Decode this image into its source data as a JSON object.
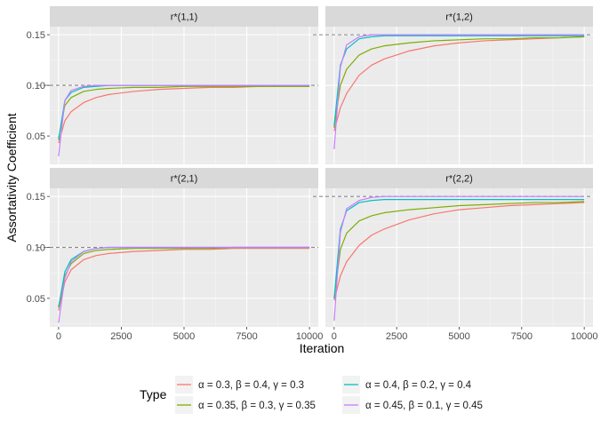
{
  "chart_data": {
    "type": "line",
    "xlabel": "Iteration",
    "ylabel": "Assortativity Coefficient",
    "xlim": [
      -350,
      10350
    ],
    "x_ticks": [
      0,
      2500,
      5000,
      7500,
      10000
    ],
    "x_tick_labels": [
      "0",
      "2500",
      "5000",
      "7500",
      "10000"
    ],
    "ylim": [
      0.022,
      0.158
    ],
    "y_ticks": [
      0.05,
      0.1,
      0.15
    ],
    "y_tick_labels": [
      "0.05",
      "0.10",
      "0.15"
    ],
    "grid": true,
    "legend_position": "bottom",
    "legend_title": "Type",
    "series": [
      {
        "name": "α = 0.3, β = 0.4, γ = 0.3",
        "color": "#F8766D"
      },
      {
        "name": "α = 0.35, β = 0.3, γ = 0.35",
        "color": "#7CAE00"
      },
      {
        "name": "α = 0.4, β = 0.2, γ = 0.4",
        "color": "#00BFC4"
      },
      {
        "name": "α = 0.45, β = 0.1, γ = 0.45",
        "color": "#C77CFF"
      }
    ],
    "panels": [
      {
        "title": "r*(1,1)",
        "reference_line": 0.1,
        "curves": [
          {
            "series": 0,
            "x": [
              0,
              250,
              500,
              1000,
              1500,
              2000,
              3000,
              4000,
              5000,
              6000,
              7000,
              8000,
              9000,
              10000
            ],
            "y": [
              0.043,
              0.065,
              0.074,
              0.083,
              0.088,
              0.091,
              0.094,
              0.096,
              0.097,
              0.098,
              0.098,
              0.099,
              0.099,
              0.099
            ]
          },
          {
            "series": 1,
            "x": [
              0,
              250,
              500,
              1000,
              1500,
              2000,
              3000,
              4000,
              5000,
              6000,
              7000,
              8000,
              9000,
              10000
            ],
            "y": [
              0.048,
              0.08,
              0.088,
              0.094,
              0.096,
              0.097,
              0.098,
              0.098,
              0.099,
              0.099,
              0.099,
              0.099,
              0.099,
              0.099
            ]
          },
          {
            "series": 2,
            "x": [
              0,
              250,
              500,
              1000,
              1500,
              2000,
              3000,
              4000,
              5000,
              6000,
              7000,
              8000,
              9000,
              10000
            ],
            "y": [
              0.046,
              0.085,
              0.093,
              0.098,
              0.099,
              0.1,
              0.1,
              0.1,
              0.1,
              0.1,
              0.1,
              0.1,
              0.1,
              0.1
            ]
          },
          {
            "series": 3,
            "x": [
              0,
              250,
              500,
              1000,
              1500,
              2000,
              3000,
              4000,
              5000,
              6000,
              7000,
              8000,
              9000,
              10000
            ],
            "y": [
              0.03,
              0.085,
              0.095,
              0.099,
              0.1,
              0.1,
              0.1,
              0.1,
              0.1,
              0.1,
              0.1,
              0.1,
              0.1,
              0.1
            ]
          }
        ]
      },
      {
        "title": "r*(1,2)",
        "reference_line": 0.15,
        "curves": [
          {
            "series": 0,
            "x": [
              0,
              250,
              500,
              1000,
              1500,
              2000,
              3000,
              4000,
              5000,
              6000,
              7000,
              8000,
              9000,
              10000
            ],
            "y": [
              0.055,
              0.078,
              0.092,
              0.11,
              0.12,
              0.126,
              0.134,
              0.139,
              0.142,
              0.144,
              0.145,
              0.146,
              0.147,
              0.148
            ]
          },
          {
            "series": 1,
            "x": [
              0,
              250,
              500,
              1000,
              1500,
              2000,
              3000,
              4000,
              5000,
              6000,
              7000,
              8000,
              9000,
              10000
            ],
            "y": [
              0.058,
              0.1,
              0.116,
              0.13,
              0.136,
              0.139,
              0.142,
              0.144,
              0.145,
              0.146,
              0.146,
              0.147,
              0.147,
              0.148
            ]
          },
          {
            "series": 2,
            "x": [
              0,
              250,
              500,
              1000,
              1500,
              2000,
              3000,
              4000,
              5000,
              6000,
              7000,
              8000,
              9000,
              10000
            ],
            "y": [
              0.06,
              0.12,
              0.136,
              0.146,
              0.148,
              0.149,
              0.149,
              0.149,
              0.149,
              0.149,
              0.149,
              0.149,
              0.149,
              0.149
            ]
          },
          {
            "series": 3,
            "x": [
              0,
              250,
              500,
              1000,
              1500,
              2000,
              3000,
              4000,
              5000,
              6000,
              7000,
              8000,
              9000,
              10000
            ],
            "y": [
              0.037,
              0.118,
              0.14,
              0.148,
              0.15,
              0.15,
              0.15,
              0.15,
              0.15,
              0.15,
              0.15,
              0.15,
              0.15,
              0.15
            ]
          }
        ]
      },
      {
        "title": "r*(2,1)",
        "reference_line": 0.1,
        "curves": [
          {
            "series": 0,
            "x": [
              0,
              250,
              500,
              1000,
              1500,
              2000,
              3000,
              4000,
              5000,
              6000,
              7000,
              8000,
              9000,
              10000
            ],
            "y": [
              0.038,
              0.066,
              0.078,
              0.088,
              0.092,
              0.094,
              0.096,
              0.097,
              0.098,
              0.098,
              0.099,
              0.099,
              0.099,
              0.099
            ]
          },
          {
            "series": 1,
            "x": [
              0,
              250,
              500,
              1000,
              1500,
              2000,
              3000,
              4000,
              5000,
              6000,
              7000,
              8000,
              9000,
              10000
            ],
            "y": [
              0.042,
              0.072,
              0.084,
              0.094,
              0.097,
              0.098,
              0.099,
              0.099,
              0.099,
              0.099,
              0.1,
              0.1,
              0.1,
              0.1
            ]
          },
          {
            "series": 2,
            "x": [
              0,
              250,
              500,
              1000,
              1500,
              2000,
              3000,
              4000,
              5000,
              6000,
              7000,
              8000,
              9000,
              10000
            ],
            "y": [
              0.041,
              0.076,
              0.088,
              0.096,
              0.099,
              0.1,
              0.1,
              0.1,
              0.1,
              0.1,
              0.1,
              0.1,
              0.1,
              0.1
            ]
          },
          {
            "series": 3,
            "x": [
              0,
              250,
              500,
              1000,
              1500,
              2000,
              3000,
              4000,
              5000,
              6000,
              7000,
              8000,
              9000,
              10000
            ],
            "y": [
              0.026,
              0.07,
              0.086,
              0.096,
              0.099,
              0.1,
              0.1,
              0.1,
              0.1,
              0.1,
              0.1,
              0.1,
              0.1,
              0.1
            ]
          }
        ]
      },
      {
        "title": "r*(2,2)",
        "reference_line": 0.15,
        "curves": [
          {
            "series": 0,
            "x": [
              0,
              250,
              500,
              1000,
              1500,
              2000,
              3000,
              4000,
              5000,
              6000,
              7000,
              8000,
              9000,
              10000
            ],
            "y": [
              0.048,
              0.072,
              0.086,
              0.102,
              0.112,
              0.118,
              0.127,
              0.133,
              0.137,
              0.139,
              0.141,
              0.142,
              0.143,
              0.144
            ]
          },
          {
            "series": 1,
            "x": [
              0,
              250,
              500,
              1000,
              1500,
              2000,
              3000,
              4000,
              5000,
              6000,
              7000,
              8000,
              9000,
              10000
            ],
            "y": [
              0.05,
              0.098,
              0.114,
              0.126,
              0.131,
              0.134,
              0.137,
              0.139,
              0.141,
              0.142,
              0.143,
              0.144,
              0.144,
              0.145
            ]
          },
          {
            "series": 2,
            "x": [
              0,
              250,
              500,
              1000,
              1500,
              2000,
              3000,
              4000,
              5000,
              6000,
              7000,
              8000,
              9000,
              10000
            ],
            "y": [
              0.05,
              0.118,
              0.136,
              0.144,
              0.146,
              0.147,
              0.147,
              0.147,
              0.147,
              0.147,
              0.147,
              0.147,
              0.147,
              0.147
            ]
          },
          {
            "series": 3,
            "x": [
              0,
              250,
              500,
              1000,
              1500,
              2000,
              3000,
              4000,
              5000,
              6000,
              7000,
              8000,
              9000,
              10000
            ],
            "y": [
              0.028,
              0.115,
              0.138,
              0.146,
              0.149,
              0.15,
              0.15,
              0.15,
              0.15,
              0.15,
              0.15,
              0.15,
              0.15,
              0.15
            ]
          }
        ]
      }
    ]
  }
}
